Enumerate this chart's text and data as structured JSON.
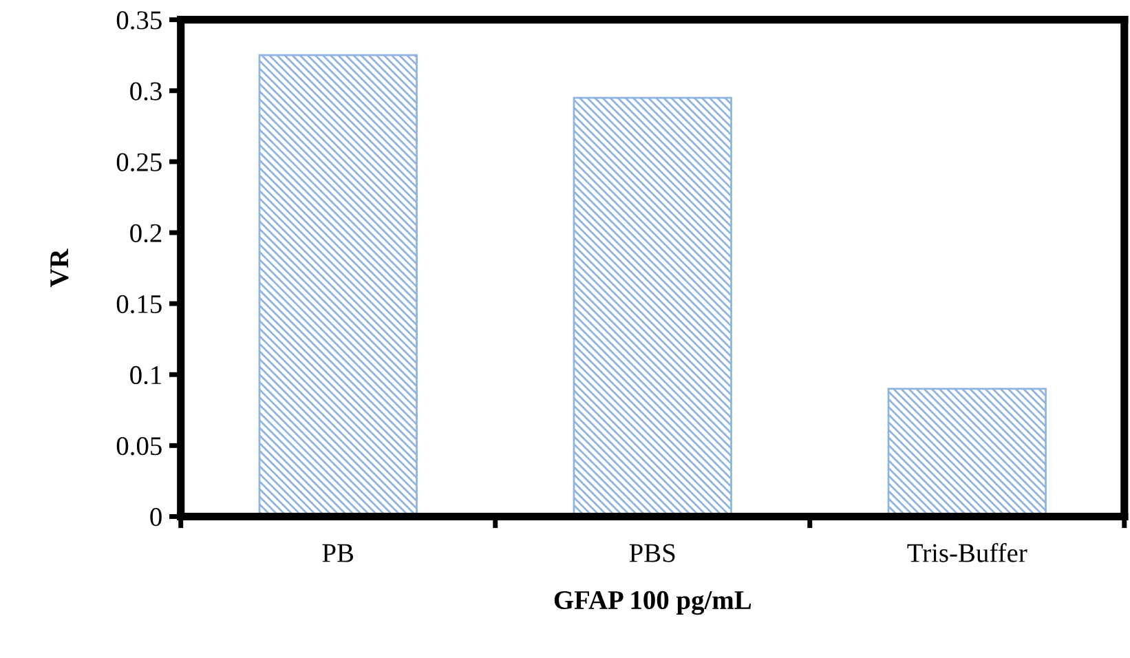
{
  "chart_data": {
    "type": "bar",
    "xlabel": "GFAP 100 pg/mL",
    "ylabel": "VR",
    "categories": [
      "PB",
      "PBS",
      "Tris-Buffer"
    ],
    "values": [
      0.325,
      0.295,
      0.09
    ],
    "color": "#8fb4e0",
    "ylim": [
      0,
      0.35
    ],
    "yticks": [
      0,
      0.05,
      0.1,
      0.15,
      0.2,
      0.25,
      0.3,
      0.35
    ],
    "grid": false
  }
}
